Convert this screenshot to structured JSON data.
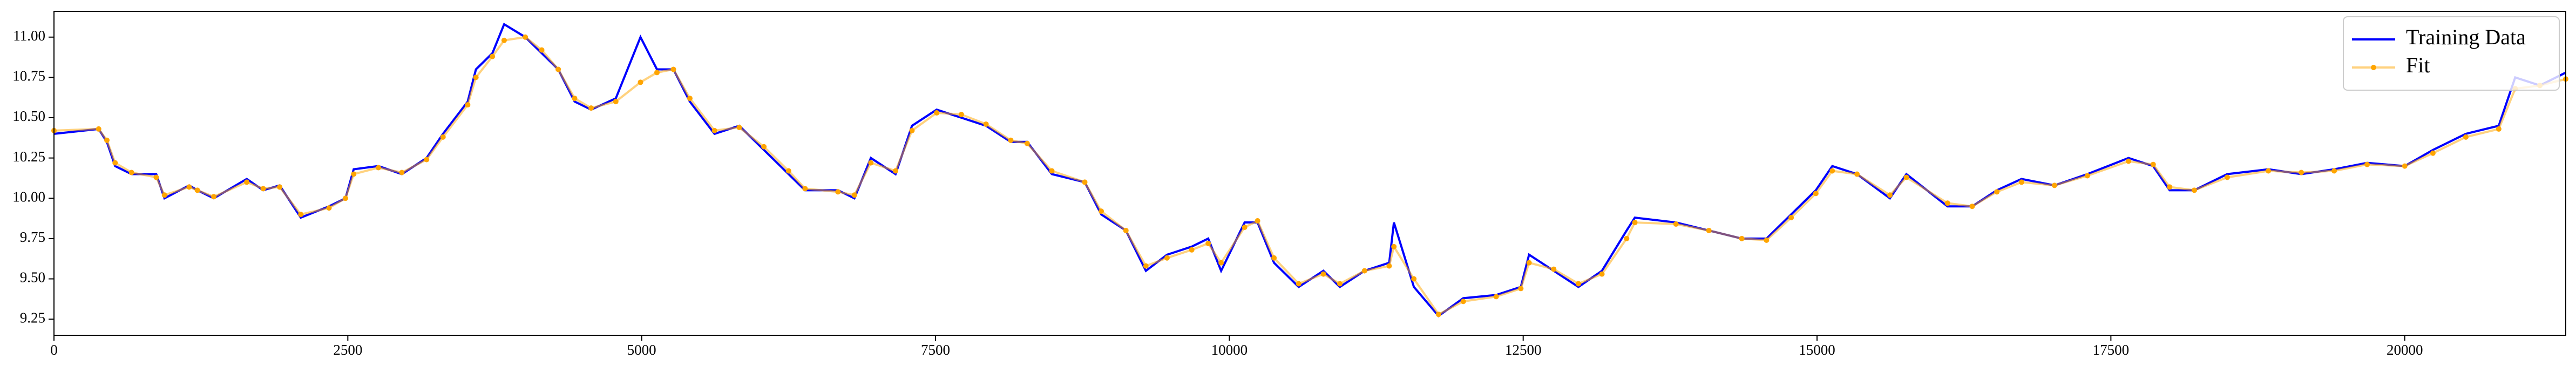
{
  "chart_data": {
    "type": "line",
    "x": [
      0,
      380,
      450,
      520,
      660,
      870,
      940,
      1150,
      1220,
      1360,
      1640,
      1780,
      1920,
      2100,
      2340,
      2480,
      2550,
      2760,
      2960,
      3170,
      3310,
      3520,
      3590,
      3730,
      3830,
      4010,
      4150,
      4290,
      4430,
      4570,
      4780,
      4990,
      5130,
      5270,
      5410,
      5620,
      5830,
      6040,
      6250,
      6390,
      6670,
      6810,
      6950,
      7160,
      7300,
      7510,
      7720,
      7930,
      8140,
      8280,
      8490,
      8770,
      8910,
      9120,
      9290,
      9470,
      9680,
      9820,
      9930,
      10130,
      10240,
      10380,
      10590,
      10800,
      10940,
      11150,
      11360,
      11400,
      11570,
      11780,
      11990,
      12270,
      12480,
      12550,
      12760,
      12970,
      13170,
      13380,
      13450,
      13800,
      14080,
      14360,
      14570,
      14780,
      14990,
      15130,
      15340,
      15620,
      15760,
      16110,
      16320,
      16530,
      16740,
      17020,
      17300,
      17650,
      17860,
      18000,
      18210,
      18490,
      18840,
      19120,
      19400,
      19680,
      20000,
      20240,
      20520,
      20800,
      20940,
      21150,
      21370
    ],
    "series": [
      {
        "name": "Training Data",
        "color": "#0000ff",
        "values": [
          10.4,
          10.43,
          10.35,
          10.2,
          10.15,
          10.15,
          10.0,
          10.08,
          10.05,
          10.0,
          10.12,
          10.05,
          10.08,
          9.88,
          9.95,
          10.0,
          10.18,
          10.2,
          10.15,
          10.25,
          10.4,
          10.6,
          10.8,
          10.9,
          11.08,
          11.0,
          10.9,
          10.8,
          10.6,
          10.55,
          10.62,
          11.0,
          10.8,
          10.8,
          10.6,
          10.4,
          10.45,
          10.3,
          10.15,
          10.05,
          10.05,
          10.0,
          10.25,
          10.15,
          10.45,
          10.55,
          10.5,
          10.45,
          10.35,
          10.35,
          10.15,
          10.1,
          9.9,
          9.8,
          9.55,
          9.65,
          9.7,
          9.75,
          9.55,
          9.85,
          9.85,
          9.6,
          9.45,
          9.55,
          9.45,
          9.55,
          9.6,
          9.85,
          9.45,
          9.27,
          9.38,
          9.4,
          9.45,
          9.65,
          9.55,
          9.45,
          9.55,
          9.8,
          9.88,
          9.85,
          9.8,
          9.75,
          9.75,
          9.9,
          10.05,
          10.2,
          10.15,
          10.0,
          10.15,
          9.95,
          9.95,
          10.05,
          10.12,
          10.08,
          10.15,
          10.25,
          10.2,
          10.05,
          10.05,
          10.15,
          10.18,
          10.15,
          10.18,
          10.22,
          10.2,
          10.3,
          10.4,
          10.45,
          10.75,
          10.7,
          10.78
        ]
      },
      {
        "name": "Fit",
        "color": "#ffa500",
        "marker": "o",
        "values": [
          10.42,
          10.43,
          10.36,
          10.22,
          10.16,
          10.13,
          10.02,
          10.07,
          10.05,
          10.01,
          10.1,
          10.06,
          10.07,
          9.9,
          9.94,
          10.0,
          10.15,
          10.19,
          10.16,
          10.24,
          10.38,
          10.58,
          10.75,
          10.88,
          10.98,
          11.0,
          10.92,
          10.8,
          10.62,
          10.56,
          10.6,
          10.72,
          10.78,
          10.8,
          10.62,
          10.42,
          10.44,
          10.32,
          10.17,
          10.06,
          10.04,
          10.02,
          10.22,
          10.17,
          10.42,
          10.53,
          10.52,
          10.46,
          10.36,
          10.34,
          10.17,
          10.1,
          9.92,
          9.8,
          9.58,
          9.63,
          9.68,
          9.72,
          9.6,
          9.82,
          9.86,
          9.63,
          9.47,
          9.53,
          9.47,
          9.55,
          9.58,
          9.7,
          9.5,
          9.28,
          9.36,
          9.39,
          9.44,
          9.6,
          9.56,
          9.47,
          9.53,
          9.75,
          9.85,
          9.84,
          9.8,
          9.75,
          9.74,
          9.88,
          10.03,
          10.17,
          10.15,
          10.02,
          10.13,
          9.97,
          9.95,
          10.04,
          10.1,
          10.08,
          10.14,
          10.23,
          10.21,
          10.07,
          10.05,
          10.13,
          10.17,
          10.16,
          10.17,
          10.21,
          10.2,
          10.28,
          10.38,
          10.43,
          10.68,
          10.7,
          10.74
        ]
      }
    ],
    "xlim": [
      0,
      21370
    ],
    "ylim": [
      9.15,
      11.16
    ],
    "xticks": [
      0,
      2500,
      5000,
      7500,
      10000,
      12500,
      15000,
      17500,
      20000
    ],
    "yticks": [
      9.25,
      {
        "value": 9.5,
        "label": "9.50"
      },
      9.75,
      {
        "value": 10,
        "label": "10.00"
      },
      10.25,
      {
        "value": 10.5,
        "label": "10.50"
      },
      10.75,
      {
        "value": 11,
        "label": "11.00"
      }
    ],
    "legend": "upper right"
  }
}
